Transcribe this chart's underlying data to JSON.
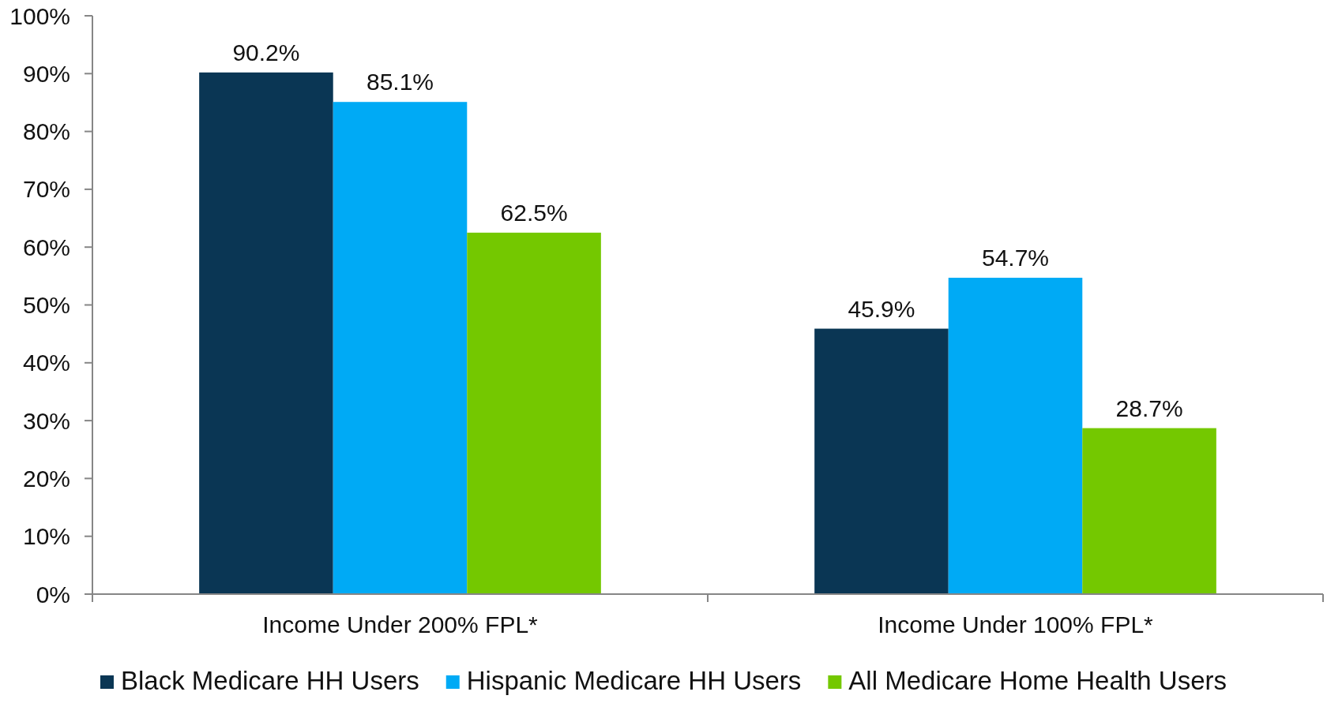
{
  "chart_data": {
    "type": "bar",
    "categories": [
      "Income Under 200% FPL*",
      "Income Under 100% FPL*"
    ],
    "series": [
      {
        "name": "Black Medicare HH Users",
        "color": "#0a3654",
        "values": [
          90.2,
          45.9
        ],
        "value_labels": [
          "90.2%",
          "45.9%"
        ]
      },
      {
        "name": "Hispanic Medicare HH Users",
        "color": "#00aaf5",
        "values": [
          85.1,
          54.7
        ],
        "value_labels": [
          "85.1%",
          "54.7%"
        ]
      },
      {
        "name": "All Medicare Home Health Users",
        "color": "#74c800",
        "values": [
          62.5,
          28.7
        ],
        "value_labels": [
          "62.5%",
          "28.7%"
        ]
      }
    ],
    "ylim": [
      0,
      100
    ],
    "yticks": [
      {
        "value": 0,
        "label": "0%"
      },
      {
        "value": 10,
        "label": "10%"
      },
      {
        "value": 20,
        "label": "20%"
      },
      {
        "value": 30,
        "label": "30%"
      },
      {
        "value": 40,
        "label": "40%"
      },
      {
        "value": 50,
        "label": "50%"
      },
      {
        "value": 60,
        "label": "60%"
      },
      {
        "value": 70,
        "label": "70%"
      },
      {
        "value": 80,
        "label": "80%"
      },
      {
        "value": 90,
        "label": "90%"
      },
      {
        "value": 100,
        "label": "100%"
      }
    ],
    "legend": "bottom"
  }
}
